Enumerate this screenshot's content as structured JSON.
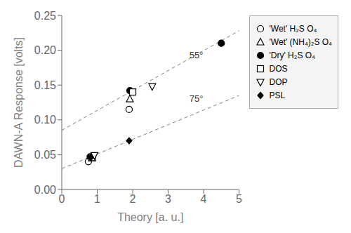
{
  "chart_data": {
    "type": "scatter",
    "xlabel": "Theory [a. u.]",
    "ylabel": "DAWN-A Response  [volts]",
    "xlim": [
      0,
      5
    ],
    "ylim": [
      0.0,
      0.25
    ],
    "xticks": [
      0,
      1,
      2,
      3,
      4,
      5
    ],
    "yticks": [
      {
        "value": 0.0,
        "label": "0.00"
      },
      0.05,
      {
        "value": 0.1,
        "label": "0.10"
      },
      0.15,
      {
        "value": 0.2,
        "label": "0.20"
      },
      0.25
    ],
    "grid": false,
    "legend": "right",
    "lines": [
      {
        "x": [
          0,
          5
        ],
        "y": [
          0.085,
          0.228
        ],
        "color": "gray",
        "line_style": "dashed"
      },
      {
        "x": [
          0,
          5
        ],
        "y": [
          0.03,
          0.135
        ],
        "color": "gray",
        "line_style": "dashed"
      }
    ],
    "annotations": [
      {
        "text": "55°",
        "x": 3.6,
        "y": 0.185
      },
      {
        "text": "75°",
        "x": 3.6,
        "y": 0.123
      }
    ],
    "series": [
      {
        "name": "'Wet' H₂S O₄",
        "marker": "circle-open",
        "color": "#000000",
        "x": [
          0.75,
          1.9
        ],
        "values": [
          0.04,
          0.115
        ]
      },
      {
        "name": "'Wet' (NH₄)₂S O₄",
        "marker": "triangle-open",
        "color": "#000000",
        "x": [
          0.85,
          1.92
        ],
        "values": [
          0.045,
          0.13
        ]
      },
      {
        "name": "'Dry' H₂S O₄",
        "marker": "circle",
        "color": "#000000",
        "x": [
          0.8,
          1.92,
          4.5
        ],
        "values": [
          0.047,
          0.142,
          0.21
        ]
      },
      {
        "name": "DOS",
        "marker": "square-open",
        "color": "#000000",
        "x": [
          0.86,
          2.0
        ],
        "values": [
          0.046,
          0.14
        ]
      },
      {
        "name": "DOP",
        "marker": "triangledown-open",
        "color": "#000000",
        "x": [
          0.92,
          2.55
        ],
        "values": [
          0.049,
          0.148
        ]
      },
      {
        "name": "PSL",
        "marker": "diamond",
        "color": "#000000",
        "x": [
          0.82,
          1.9,
          4.5
        ],
        "values": [
          0.046,
          0.07,
          0.21
        ]
      }
    ]
  }
}
